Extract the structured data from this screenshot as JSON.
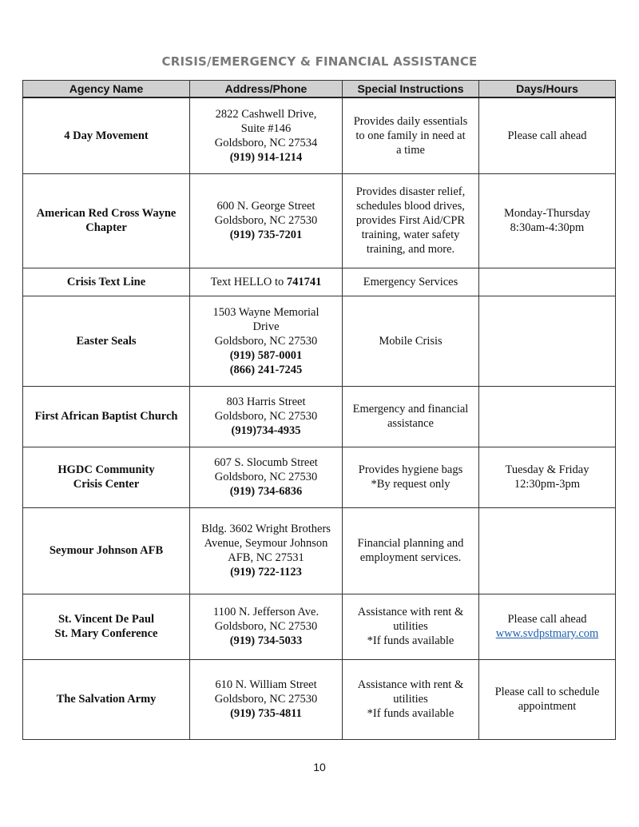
{
  "title": "CRISIS/EMERGENCY & FINANCIAL ASSISTANCE",
  "headers": [
    "Agency Name",
    "Address/Phone",
    "Special Instructions",
    "Days/Hours"
  ],
  "rows": [
    {
      "agency": [
        "4 Day Movement"
      ],
      "address": [
        [
          {
            "t": "2822 Cashwell Drive,"
          }
        ],
        [
          {
            "t": "Suite #146"
          }
        ],
        [
          {
            "t": "Goldsboro, NC 27534"
          }
        ],
        [
          {
            "t": "(919) 914-1214",
            "b": true
          }
        ]
      ],
      "instructions": [
        "Provides daily essentials",
        "to one family in need at",
        "a time"
      ],
      "hours": [
        {
          "t": "Please call ahead"
        }
      ]
    },
    {
      "agency": [
        "American Red Cross Wayne",
        "Chapter"
      ],
      "address": [
        [
          {
            "t": "600 N. George Street"
          }
        ],
        [
          {
            "t": "Goldsboro, NC 27530"
          }
        ],
        [
          {
            "t": "(919) 735-7201",
            "b": true
          }
        ]
      ],
      "instructions": [
        "Provides disaster relief,",
        "schedules blood drives,",
        "provides First Aid/CPR",
        "training, water safety",
        "training, and more."
      ],
      "hours": [
        {
          "t": "Monday-Thursday"
        },
        {
          "t": "8:30am-4:30pm"
        }
      ]
    },
    {
      "agency": [
        "Crisis Text Line"
      ],
      "address": [
        [
          {
            "t": "Text HELLO to "
          },
          {
            "t": "741741",
            "b": true
          }
        ]
      ],
      "instructions": [
        "Emergency Services"
      ],
      "hours": []
    },
    {
      "agency": [
        "Easter Seals"
      ],
      "address": [
        [
          {
            "t": "1503 Wayne Memorial"
          }
        ],
        [
          {
            "t": "Drive"
          }
        ],
        [
          {
            "t": "Goldsboro, NC 27530"
          }
        ],
        [
          {
            "t": "(919) 587-0001",
            "b": true
          }
        ],
        [
          {
            "t": "(866) 241-7245",
            "b": true
          }
        ]
      ],
      "instructions": [
        "Mobile Crisis"
      ],
      "hours": []
    },
    {
      "agency": [
        "First African Baptist Church"
      ],
      "address": [
        [
          {
            "t": "803 Harris Street"
          }
        ],
        [
          {
            "t": "Goldsboro, NC 27530"
          }
        ],
        [
          {
            "t": "(919)734-4935",
            "b": true
          }
        ]
      ],
      "instructions": [
        "Emergency and financial",
        "assistance"
      ],
      "hours": []
    },
    {
      "agency": [
        "HGDC Community",
        "Crisis Center"
      ],
      "address": [
        [
          {
            "t": "607 S. Slocumb Street"
          }
        ],
        [
          {
            "t": "Goldsboro, NC 27530"
          }
        ],
        [
          {
            "t": "(919) 734-6836",
            "b": true
          }
        ]
      ],
      "instructions": [
        "Provides hygiene bags",
        "*By request only"
      ],
      "hours": [
        {
          "t": "Tuesday & Friday"
        },
        {
          "t": "12:30pm-3pm"
        }
      ]
    },
    {
      "agency": [
        "Seymour Johnson AFB"
      ],
      "address": [
        [
          {
            "t": "Bldg. 3602 Wright Brothers"
          }
        ],
        [
          {
            "t": "Avenue, Seymour Johnson"
          }
        ],
        [
          {
            "t": "AFB, NC 27531"
          }
        ],
        [
          {
            "t": "(919) 722-1123",
            "b": true
          }
        ]
      ],
      "instructions": [
        "Financial planning and",
        "employment services."
      ],
      "hours": []
    },
    {
      "agency": [
        "St. Vincent De Paul",
        "St. Mary Conference"
      ],
      "address": [
        [
          {
            "t": "1100 N. Jefferson Ave."
          }
        ],
        [
          {
            "t": "Goldsboro, NC 27530"
          }
        ],
        [
          {
            "t": "(919) 734-5033",
            "b": true
          }
        ]
      ],
      "instructions": [
        "Assistance with rent &",
        "utilities",
        "*If funds available"
      ],
      "hours": [
        {
          "t": "Please call ahead"
        },
        {
          "t": "www.svdpstmary.com",
          "link": true
        }
      ]
    },
    {
      "agency": [
        "The Salvation Army"
      ],
      "address": [
        [
          {
            "t": "610 N. William Street"
          }
        ],
        [
          {
            "t": "Goldsboro, NC 27530"
          }
        ],
        [
          {
            "t": "(919) 735-4811",
            "b": true
          }
        ]
      ],
      "instructions": [
        "Assistance with rent &",
        "utilities",
        "*If funds available"
      ],
      "hours": [
        {
          "t": "Please call to schedule"
        },
        {
          "t": "appointment"
        }
      ]
    }
  ],
  "page_number": "10"
}
